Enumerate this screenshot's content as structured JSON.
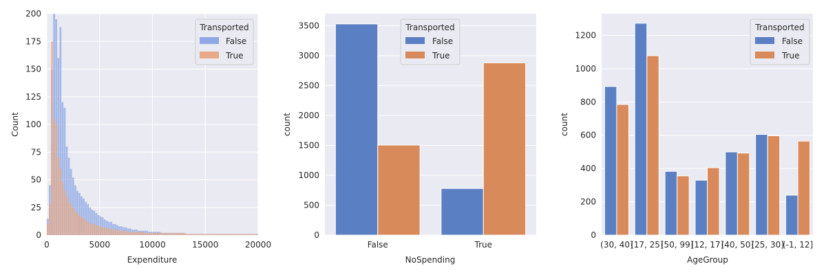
{
  "colors": {
    "panel_bg": "#eaeaf2",
    "grid": "#ffffff",
    "false_bar": "#5a7fc2",
    "true_bar": "#d98a5b",
    "hist_false": "#8da8e4",
    "hist_true": "#e6aa88",
    "legend_bg": "#eaeaf2"
  },
  "chart_data": [
    {
      "type": "bar",
      "subtype": "histogram",
      "xlabel": "Expenditure",
      "ylabel": "Count",
      "xlim": [
        0,
        20000
      ],
      "ylim": [
        0,
        200
      ],
      "xticks": [
        "0",
        "5000",
        "10000",
        "15000",
        "20000"
      ],
      "yticks": [
        "0",
        "25",
        "50",
        "75",
        "100",
        "125",
        "150",
        "175",
        "200"
      ],
      "grid": true,
      "legend_title": "Transported",
      "legend_position": "top-right",
      "bin_width": 200,
      "series": [
        {
          "name": "False",
          "bin_starts": [
            0,
            200,
            400,
            600,
            800,
            1000,
            1200,
            1400,
            1600,
            1800,
            2000,
            2200,
            2400,
            2600,
            2800,
            3000,
            3200,
            3400,
            3600,
            3800,
            4000,
            4200,
            4400,
            4600,
            4800,
            5000,
            5200,
            5400,
            5600,
            5800,
            6000,
            6200,
            6400,
            6600,
            6800,
            7000,
            7200,
            7400,
            7600,
            7800,
            8000,
            8200,
            8400,
            8600,
            8800,
            9000,
            9200,
            9400,
            9600,
            9800,
            10000,
            10200,
            10400,
            10600,
            10800,
            11000,
            11200,
            11400,
            11600,
            11800,
            12000,
            12200,
            12400,
            12600,
            12800,
            13000,
            13200,
            13400,
            13600,
            13800,
            14000,
            14200,
            14400,
            14600,
            14800,
            15000,
            15200,
            15400,
            15600,
            15800,
            16000,
            16200,
            16400,
            16600,
            16800,
            17000,
            17200,
            17400,
            17600,
            17800,
            18000,
            18200,
            18400,
            18600,
            18800,
            19000,
            19200,
            19400,
            19600,
            19800
          ],
          "counts": [
            15,
            45,
            150,
            200,
            195,
            160,
            188,
            120,
            115,
            80,
            70,
            60,
            52,
            45,
            40,
            38,
            35,
            33,
            30,
            28,
            25,
            23,
            22,
            20,
            18,
            17,
            16,
            14,
            13,
            12,
            12,
            10,
            10,
            9,
            8,
            8,
            7,
            7,
            6,
            6,
            5,
            5,
            5,
            4,
            4,
            4,
            4,
            4,
            3,
            3,
            3,
            3,
            3,
            3,
            2,
            2,
            2,
            2,
            2,
            2,
            2,
            2,
            2,
            2,
            2,
            1,
            1,
            1,
            1,
            1,
            1,
            1,
            1,
            1,
            1,
            1,
            1,
            1,
            1,
            1,
            1,
            1,
            1,
            1,
            1,
            1,
            1,
            1,
            1,
            1,
            1,
            1,
            1,
            1,
            1,
            1,
            1,
            1,
            1,
            1
          ]
        },
        {
          "name": "True",
          "bin_starts": [
            0,
            200,
            400,
            600,
            800,
            1000,
            1200,
            1400,
            1600,
            1800,
            2000,
            2200,
            2400,
            2600,
            2800,
            3000,
            3200,
            3400,
            3600,
            3800,
            4000,
            4200,
            4400,
            4600,
            4800,
            5000,
            5200,
            5400,
            5600,
            5800,
            6000,
            6200,
            6400,
            6600,
            6800,
            7000,
            7200,
            7400,
            7600,
            7800,
            8000,
            8200,
            8400,
            8600,
            8800,
            9000,
            9200,
            9400,
            9600,
            9800,
            10000,
            10200,
            10400,
            10600,
            10800,
            11000,
            11200,
            11400,
            11600,
            11800,
            12000,
            12200,
            12400,
            12600,
            12800,
            13000,
            13200,
            13400,
            13600,
            13800,
            14000,
            14200,
            14400,
            14600,
            14800,
            15000,
            15200,
            15400,
            15600,
            15800,
            16000,
            16200,
            16400,
            16600,
            16800,
            17000,
            17200,
            17400,
            17600,
            17800,
            18000,
            18200,
            18400,
            18600,
            18800,
            19000,
            19200,
            19400,
            19600,
            19800
          ],
          "counts": [
            10,
            28,
            175,
            105,
            100,
            70,
            60,
            48,
            40,
            35,
            30,
            28,
            25,
            22,
            20,
            18,
            16,
            15,
            14,
            12,
            11,
            10,
            10,
            9,
            8,
            8,
            7,
            7,
            6,
            6,
            5,
            5,
            5,
            5,
            4,
            4,
            4,
            4,
            3,
            3,
            3,
            3,
            3,
            3,
            3,
            3,
            2,
            2,
            2,
            2,
            2,
            2,
            2,
            2,
            2,
            2,
            2,
            2,
            2,
            2,
            2,
            2,
            2,
            2,
            2,
            2,
            1,
            1,
            1,
            1,
            1,
            1,
            1,
            1,
            1,
            1,
            1,
            1,
            1,
            1,
            1,
            1,
            1,
            1,
            1,
            1,
            1,
            1,
            1,
            1,
            1,
            1,
            1,
            1,
            1,
            1,
            1,
            1,
            1,
            1
          ]
        }
      ]
    },
    {
      "type": "bar",
      "xlabel": "NoSpending",
      "ylabel": "count",
      "categories": [
        "False",
        "True"
      ],
      "ylim": [
        0,
        3700
      ],
      "yticks": [
        "0",
        "500",
        "1000",
        "1500",
        "2000",
        "2500",
        "3000",
        "3500"
      ],
      "grid": true,
      "legend_title": "Transported",
      "legend_position": "top-center",
      "series": [
        {
          "name": "False",
          "values": [
            3530,
            780
          ]
        },
        {
          "name": "True",
          "values": [
            1505,
            2880
          ]
        }
      ]
    },
    {
      "type": "bar",
      "xlabel": "AgeGroup",
      "ylabel": "count",
      "categories": [
        "(30, 40]",
        "(17, 25]",
        "(50, 99]",
        "(12, 17]",
        "(40, 50]",
        "(25, 30]",
        "(-1, 12]"
      ],
      "ylim": [
        0,
        1330
      ],
      "yticks": [
        "0",
        "200",
        "400",
        "600",
        "800",
        "1000",
        "1200"
      ],
      "grid": true,
      "legend_title": "Transported",
      "legend_position": "top-right",
      "series": [
        {
          "name": "False",
          "values": [
            893,
            1273,
            383,
            330,
            500,
            605,
            240
          ]
        },
        {
          "name": "True",
          "values": [
            785,
            1078,
            356,
            405,
            493,
            597,
            565
          ]
        }
      ]
    }
  ]
}
